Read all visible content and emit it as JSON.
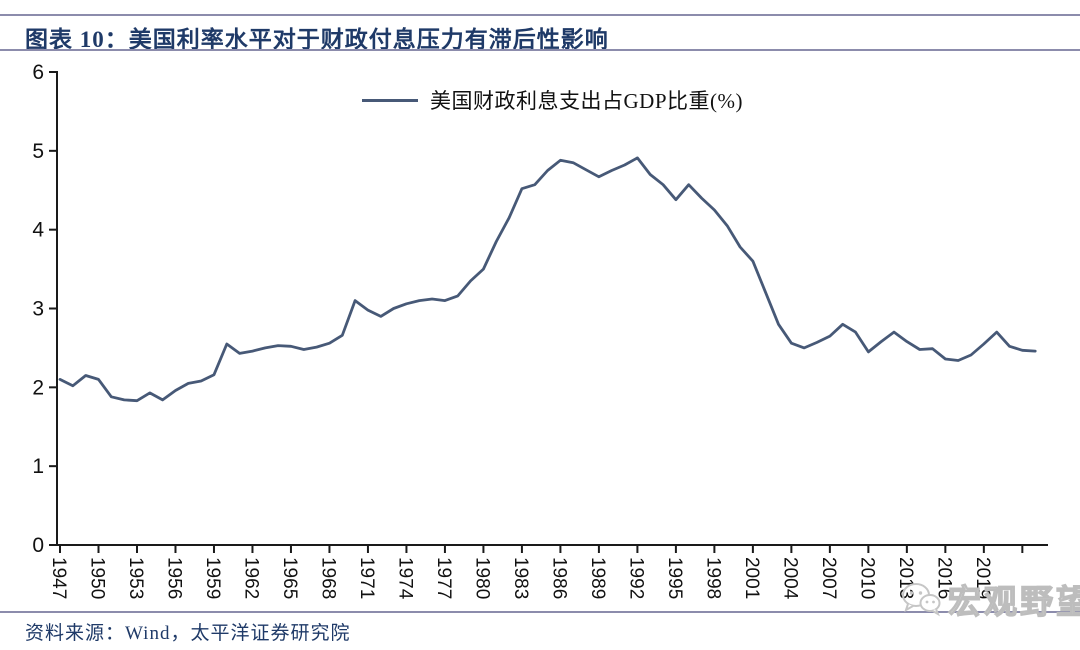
{
  "header": {
    "title": "图表 10：美国利率水平对于财政付息压力有滞后性影响"
  },
  "legend": {
    "label": "美国财政利息支出占GDP比重(%)"
  },
  "footer": {
    "source": "资料来源：Wind，太平洋证券研究院"
  },
  "watermark": {
    "icon": "wechat-icon",
    "text": "宏观野望"
  },
  "colors": {
    "accent_title": "#1f3a68",
    "series_line": "#475977",
    "rule": "#8c8cac",
    "axis": "#1a1a1a",
    "watermark": "#bdbdbd"
  },
  "chart_data": {
    "type": "line",
    "title": "",
    "xlabel": "",
    "ylabel": "",
    "legend_position": "top-center",
    "grid": false,
    "ylim": [
      0,
      6
    ],
    "y_ticks": [
      0,
      1,
      2,
      3,
      4,
      5,
      6
    ],
    "x_domain": [
      1947,
      2024
    ],
    "x_ticks": [
      1947,
      1950,
      1953,
      1956,
      1959,
      1962,
      1965,
      1968,
      1971,
      1974,
      1977,
      1980,
      1983,
      1986,
      1989,
      1992,
      1995,
      1998,
      2001,
      2004,
      2007,
      2010,
      2013,
      2016,
      2019,
      2022
    ],
    "x_label_max": 2019,
    "series": [
      {
        "name": "美国财政利息支出占GDP比重(%)",
        "x": [
          1947,
          1948,
          1949,
          1950,
          1951,
          1952,
          1953,
          1954,
          1955,
          1956,
          1957,
          1958,
          1959,
          1960,
          1961,
          1962,
          1963,
          1964,
          1965,
          1966,
          1967,
          1968,
          1969,
          1970,
          1971,
          1972,
          1973,
          1974,
          1975,
          1976,
          1977,
          1978,
          1979,
          1980,
          1981,
          1982,
          1983,
          1984,
          1985,
          1986,
          1987,
          1988,
          1989,
          1990,
          1991,
          1992,
          1993,
          1994,
          1995,
          1996,
          1997,
          1998,
          1999,
          2000,
          2001,
          2002,
          2003,
          2004,
          2005,
          2006,
          2007,
          2008,
          2009,
          2010,
          2011,
          2012,
          2013,
          2014,
          2015,
          2016,
          2017,
          2018,
          2019,
          2020,
          2021,
          2022,
          2023
        ],
        "values": [
          2.1,
          2.02,
          2.15,
          2.1,
          1.88,
          1.84,
          1.83,
          1.93,
          1.84,
          1.96,
          2.05,
          2.08,
          2.16,
          2.55,
          2.43,
          2.46,
          2.5,
          2.53,
          2.52,
          2.48,
          2.51,
          2.56,
          2.66,
          3.1,
          2.98,
          2.9,
          3.0,
          3.06,
          3.1,
          3.12,
          3.1,
          3.16,
          3.35,
          3.5,
          3.85,
          4.15,
          4.52,
          4.57,
          4.75,
          4.88,
          4.85,
          4.76,
          4.67,
          4.75,
          4.82,
          4.91,
          4.7,
          4.57,
          4.38,
          4.57,
          4.4,
          4.25,
          4.05,
          3.78,
          3.6,
          3.2,
          2.8,
          2.56,
          2.5,
          2.57,
          2.65,
          2.8,
          2.7,
          2.45,
          2.58,
          2.7,
          2.58,
          2.48,
          2.49,
          2.36,
          2.34,
          2.41,
          2.55,
          2.7,
          2.52,
          2.47,
          2.46
        ]
      }
    ]
  }
}
